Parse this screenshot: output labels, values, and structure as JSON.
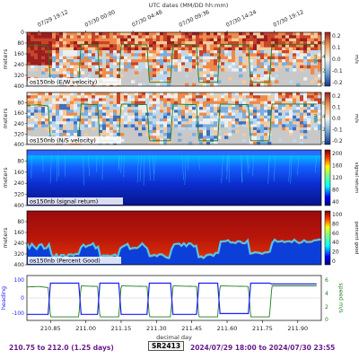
{
  "figure": {
    "top_axis_label": "UTC dates (MM/DD hh:mm)",
    "top_ticks": [
      "07/29 19:12",
      "07/30 00:00",
      "07/30 04:48",
      "07/30 09:36",
      "07/30 14:24",
      "07/30 19:12"
    ],
    "bottom_ticks": [
      "210.85",
      "211.00",
      "211.15",
      "211.30",
      "211.45",
      "211.60",
      "211.75",
      "211.90"
    ],
    "bottom_axis_label": "decimal day",
    "ylabel_meters": "meters",
    "depth_ticks": [
      "80",
      "160",
      "240",
      "320",
      "400"
    ],
    "depth_ticks_panel1": [
      "0",
      "80",
      "160",
      "240",
      "320",
      "400"
    ],
    "speed_label": "m/s",
    "speed_ticks": [
      "6",
      "4",
      "2",
      "0"
    ],
    "bottom_speed_label": "speed m/s",
    "heading_label": "heading",
    "heading_ticks": [
      "100",
      "0",
      "-100"
    ],
    "colors": {
      "heading": "#1a1aff",
      "speed": "#1e7d1e",
      "footer": "#6a1b8a"
    }
  },
  "panels": [
    {
      "title": "os150nb (E/W velocity)",
      "cbar_label": "m/s",
      "cbar_ticks": [
        "0.2",
        "0.1",
        "0.0",
        "-0.1",
        "-0.2"
      ],
      "colormap": "diverging"
    },
    {
      "title": "os150nb (N/S velocity)",
      "cbar_label": "m/s",
      "cbar_ticks": [
        "0.2",
        "0.1",
        "0.0",
        "-0.1",
        "-0.2"
      ],
      "colormap": "diverging"
    },
    {
      "title": "os150nb (signal return)",
      "cbar_label": "signal return",
      "cbar_ticks": [
        "200",
        "160",
        "120",
        "80",
        "40"
      ],
      "colormap": "jet"
    },
    {
      "title": "os150nb (Percent Good)",
      "cbar_label": "percent good",
      "cbar_ticks": [
        "100",
        "80",
        "60",
        "40",
        "20",
        "0"
      ],
      "colormap": "jet"
    }
  ],
  "chart_data": {
    "type": "heatmap",
    "x_range": [
      210.75,
      212.0
    ],
    "depth_range_m": [
      0,
      400
    ],
    "ship_speed_mps": {
      "t": [
        210.75,
        210.8,
        210.84,
        210.85,
        210.97,
        210.98,
        211.05,
        211.06,
        211.14,
        211.15,
        211.26,
        211.27,
        211.36,
        211.37,
        211.47,
        211.48,
        211.56,
        211.57,
        211.69,
        211.7,
        211.78,
        211.79,
        211.98
      ],
      "v": [
        5.6,
        5.7,
        5.5,
        0.3,
        0.3,
        5.8,
        5.7,
        0.3,
        0.3,
        5.8,
        5.7,
        0.3,
        0.3,
        5.8,
        5.7,
        0.3,
        0.3,
        5.8,
        5.7,
        0.3,
        0.3,
        5.8,
        5.8
      ]
    },
    "heading_deg": {
      "t": [
        210.75,
        210.84,
        210.85,
        210.97,
        210.98,
        211.05,
        211.06,
        211.14,
        211.15,
        211.26,
        211.27,
        211.36,
        211.37,
        211.47,
        211.48,
        211.56,
        211.57,
        211.69,
        211.7,
        211.78,
        211.79,
        211.98
      ],
      "v": [
        -100,
        -100,
        90,
        90,
        -100,
        -100,
        90,
        90,
        -100,
        -100,
        90,
        90,
        -100,
        -100,
        90,
        90,
        -95,
        -95,
        90,
        90,
        85,
        85
      ]
    }
  },
  "footer": {
    "left": "210.75 to 212.0 (1.25 days)",
    "center": "SR2413",
    "right": "2024/07/29 18:00 to 2024/07/30 23:55"
  }
}
